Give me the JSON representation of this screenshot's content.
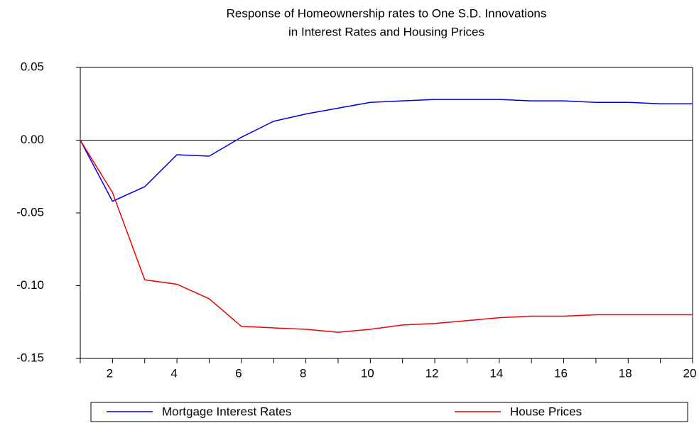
{
  "chart_data": {
    "type": "line",
    "title": [
      "Response of Homeownership rates to One S.D. Innovations",
      "in Interest Rates and Housing Prices"
    ],
    "x": [
      1,
      2,
      3,
      4,
      5,
      6,
      7,
      8,
      9,
      10,
      11,
      12,
      13,
      14,
      15,
      16,
      17,
      18,
      19,
      20
    ],
    "series": [
      {
        "name": "Mortgage Interest Rates",
        "color": "#0000dd",
        "values": [
          0,
          -0.042,
          -0.032,
          -0.01,
          -0.011,
          0.002,
          0.013,
          0.018,
          0.022,
          0.026,
          0.027,
          0.028,
          0.028,
          0.028,
          0.027,
          0.027,
          0.026,
          0.026,
          0.025,
          0.025
        ]
      },
      {
        "name": "House Prices",
        "color": "#ee0000",
        "values": [
          0,
          -0.036,
          -0.096,
          -0.099,
          -0.109,
          -0.128,
          -0.129,
          -0.13,
          -0.132,
          -0.13,
          -0.127,
          -0.126,
          -0.124,
          -0.122,
          -0.121,
          -0.121,
          -0.12,
          -0.12,
          -0.12,
          -0.12
        ]
      }
    ],
    "xlim": [
      1,
      20
    ],
    "xticks": [
      2,
      4,
      6,
      8,
      10,
      12,
      14,
      16,
      18,
      20
    ],
    "xminor_ticks": [
      1,
      3,
      5,
      7,
      9,
      11,
      13,
      15,
      17,
      19
    ],
    "ylim": [
      -0.15,
      0.05
    ],
    "yticks": [
      {
        "value": -0.15,
        "label": "-0.15"
      },
      {
        "value": -0.1,
        "label": "-0.10"
      },
      {
        "value": -0.05,
        "label": "-0.05"
      },
      {
        "value": 0,
        "label": "0.00"
      },
      {
        "value": 0.05,
        "label": "0.05"
      }
    ],
    "reference_line": 0,
    "grid": false,
    "legend": "bottom"
  }
}
